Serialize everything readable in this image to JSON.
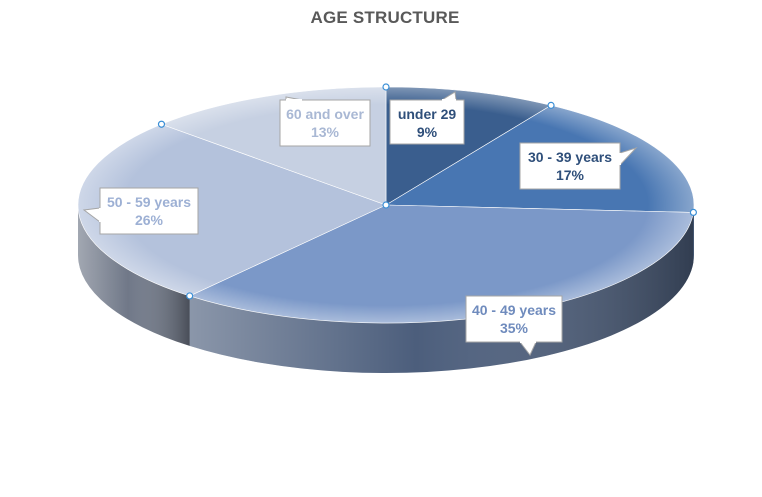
{
  "chart_data": {
    "type": "pie",
    "title": "AGE STRUCTURE",
    "categories": [
      "under 29",
      "30 - 39 years",
      "40 - 49 years",
      "50 - 59 years",
      "60 and over"
    ],
    "values": [
      9,
      17,
      35,
      26,
      13
    ],
    "value_labels": [
      "9%",
      "17%",
      "35%",
      "26%",
      "13%"
    ],
    "colors": [
      "#3a5e8e",
      "#4876b2",
      "#7b98c8",
      "#b4c2dc",
      "#c6d0e2"
    ],
    "label_colors": [
      "#2f4f7a",
      "#2f4f7a",
      "#6f8bbd",
      "#9db0d4",
      "#a9b8d4"
    ],
    "style": "3d",
    "legend": "none"
  }
}
